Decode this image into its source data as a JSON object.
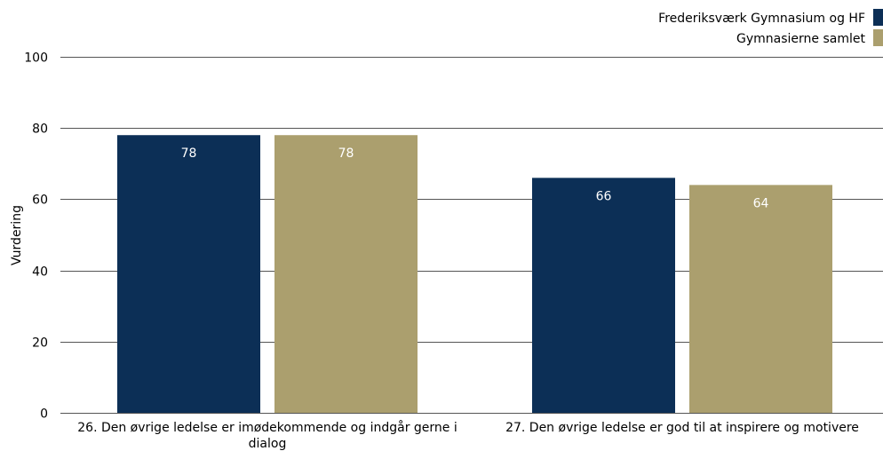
{
  "chart_data": {
    "type": "bar",
    "categories": [
      [
        "26. Den øvrige ledelse er imødekommende og indgår gerne i",
        "dialog"
      ],
      [
        "27. Den øvrige ledelse er god til at inspirere og motivere"
      ]
    ],
    "series": [
      {
        "name": "Frederiksværk Gymnasium og HF",
        "color": "#0c2f56",
        "values": [
          78,
          66
        ]
      },
      {
        "name": "Gymnasierne samlet",
        "color": "#ab9f6e",
        "values": [
          78,
          64
        ]
      }
    ],
    "ylabel": "Vurdering",
    "ylim": [
      0,
      100
    ],
    "yticks": [
      0,
      20,
      40,
      60,
      80,
      100
    ],
    "grid": true,
    "legend": "top-right"
  }
}
